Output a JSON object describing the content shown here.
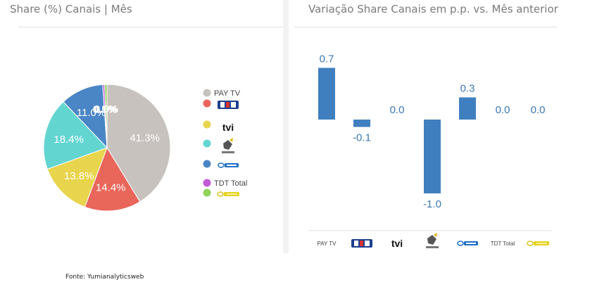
{
  "left_panel": {
    "title": "Share (%) Canais | Mês"
  },
  "right_panel": {
    "title": "Variação Share Canais em p.p. vs. Mês anterior"
  },
  "source": "Fonte: Yumianalyticsweb",
  "chart_data": [
    {
      "type": "pie",
      "title": "Share (%) Canais | Mês",
      "slices": [
        {
          "label": "PAY TV",
          "value": 41.3,
          "color": "#c8c2bf",
          "display": "41.3%",
          "logo": null
        },
        {
          "label": "SIC",
          "value": 14.4,
          "color": "#e9665a",
          "display": "14.4%",
          "logo": "sic-logo"
        },
        {
          "label": "TVI",
          "value": 13.8,
          "color": "#e8d44d",
          "display": "13.8%",
          "logo": "tvi-logo"
        },
        {
          "label": "OUTROS",
          "value": 18.4,
          "color": "#63d5d1",
          "display": "18.4%",
          "logo": "outros-logo"
        },
        {
          "label": "RTP1",
          "value": 11.0,
          "color": "#4a86c5",
          "display": "11.0%",
          "logo": "rtp1-logo"
        },
        {
          "label": "TDT Total",
          "value": 0.5,
          "color": "#c25bd6",
          "display": "0.5%",
          "logo": null
        },
        {
          "label": "RTP2",
          "value": 0.6,
          "color": "#8fd45a",
          "display": "0.6%",
          "logo": "rtp2-logo"
        }
      ],
      "legend_position": "right"
    },
    {
      "type": "bar",
      "title": "Variação Share Canais em p.p. vs. Mês anterior",
      "categories": [
        "PAY TV",
        "SIC",
        "TVI",
        "OUTROS",
        "RTP1",
        "TDT Total",
        "RTP2"
      ],
      "category_display": [
        "PAY TV",
        "",
        "",
        "",
        "",
        "TDT Total",
        ""
      ],
      "category_logos": [
        null,
        "sic-logo",
        "tvi-logo",
        "outros-logo",
        "rtp1-logo",
        null,
        "rtp2-logo"
      ],
      "values": [
        0.7,
        -0.1,
        0.0,
        -1.0,
        0.3,
        0.0,
        0.0
      ],
      "value_labels": [
        "0.7",
        "-0.1",
        "0.0",
        "-1.0",
        "0.3",
        "0.0",
        "0.0"
      ],
      "ylim": [
        -1.0,
        0.7
      ],
      "bar_color": "#3f7fbf",
      "label_color": "#3c78b0"
    }
  ]
}
